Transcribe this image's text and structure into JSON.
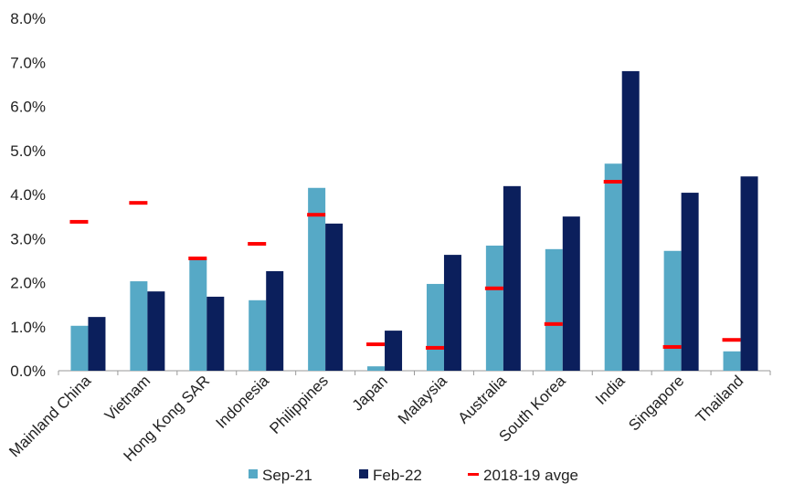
{
  "chart_data": {
    "type": "bar",
    "categories": [
      "Mainland China",
      "Vietnam",
      "Hong Kong SAR",
      "Indonesia",
      "Philippines",
      "Japan",
      "Malaysia",
      "Australia",
      "South Korea",
      "India",
      "Singapore",
      "Thailand"
    ],
    "series": [
      {
        "name": "Sep-21",
        "kind": "bar",
        "color": "#56A9C6",
        "values": [
          1.02,
          2.03,
          2.55,
          1.6,
          4.15,
          0.1,
          1.97,
          2.84,
          2.76,
          4.7,
          2.72,
          0.44
        ]
      },
      {
        "name": "Feb-22",
        "kind": "bar",
        "color": "#0B1F5C",
        "values": [
          1.22,
          1.8,
          1.68,
          2.26,
          3.34,
          0.91,
          2.63,
          4.19,
          3.5,
          6.8,
          4.04,
          4.41
        ]
      },
      {
        "name": "2018-19 avge",
        "kind": "marker",
        "color": "#FF0000",
        "values": [
          3.38,
          3.81,
          2.55,
          2.88,
          3.54,
          0.6,
          0.52,
          1.87,
          1.06,
          4.29,
          0.54,
          0.7
        ]
      }
    ],
    "ylim": [
      0,
      8
    ],
    "yticks": [
      "0.0%",
      "1.0%",
      "2.0%",
      "3.0%",
      "4.0%",
      "5.0%",
      "6.0%",
      "7.0%",
      "8.0%"
    ],
    "grid": false,
    "legend": "bottom",
    "title": "",
    "xlabel": "",
    "ylabel": ""
  }
}
